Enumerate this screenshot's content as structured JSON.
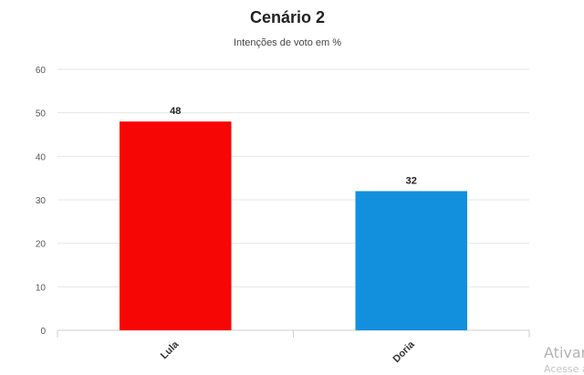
{
  "chart_data": {
    "type": "bar",
    "title": "Cenário 2",
    "subtitle": "Intenções de voto em %",
    "categories": [
      "Lula",
      "Doria"
    ],
    "values": [
      48,
      32
    ],
    "data_labels": [
      "48",
      "32"
    ],
    "bar_colors": [
      "#f70606",
      "#1290de"
    ],
    "ylim": [
      0,
      60
    ],
    "yticks": [
      0,
      10,
      20,
      30,
      40,
      50,
      60
    ],
    "grid": true,
    "legend": "none"
  },
  "overlay": {
    "watermark": "Ativar",
    "watermark_sub": "Acesse a"
  }
}
